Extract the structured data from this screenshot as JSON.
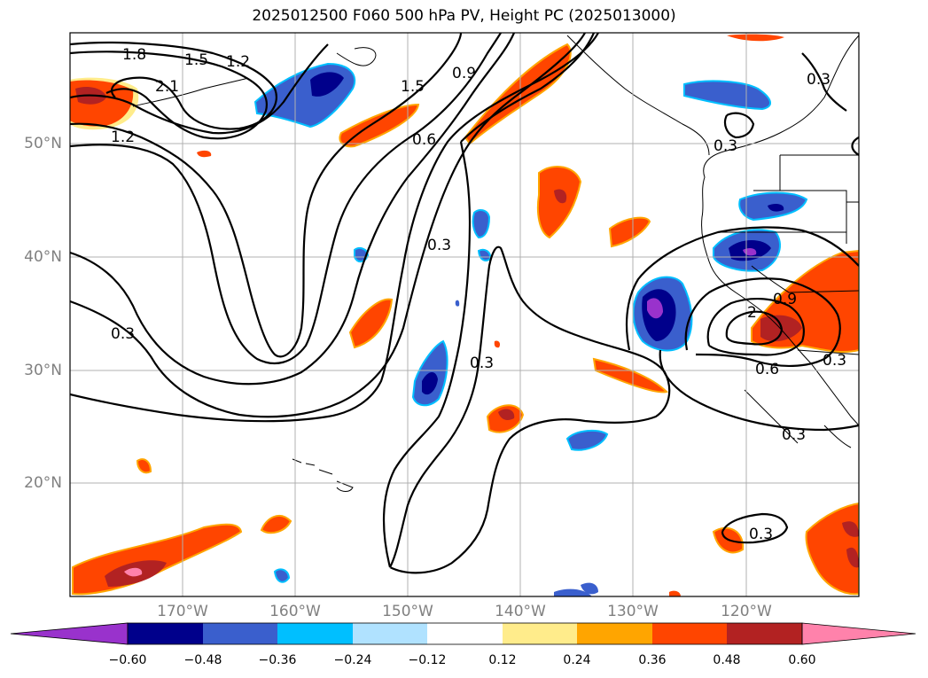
{
  "title": "2025012500 F060 500 hPa PV, Height PC (2025013000)",
  "lat_labels": [
    "50°N",
    "40°N",
    "30°N",
    "20°N"
  ],
  "lon_labels": [
    "170°W",
    "160°W",
    "150°W",
    "140°W",
    "130°W",
    "120°W"
  ],
  "contour_labels": [
    "1.8",
    "1.5",
    "1.2",
    "2.1",
    "1.2",
    "1.5",
    "0.9",
    "0.6",
    "0.3",
    "0.3",
    "0.3",
    "0.3",
    "0.3",
    "0.9",
    "2",
    "0.6",
    "0.3",
    "0.3",
    "0.3"
  ],
  "colorbar": {
    "tick_labels": [
      "−0.60",
      "−0.48",
      "−0.36",
      "−0.24",
      "−0.12",
      "0.12",
      "0.24",
      "0.36",
      "0.48",
      "0.60"
    ],
    "colors": [
      "#9932cc",
      "#00008b",
      "#3a5fcd",
      "#00bfff",
      "#b0e2ff",
      "#ffffff",
      "#ffec8b",
      "#ffa500",
      "#ff4500",
      "#b22222",
      "#ff82ab"
    ]
  }
}
